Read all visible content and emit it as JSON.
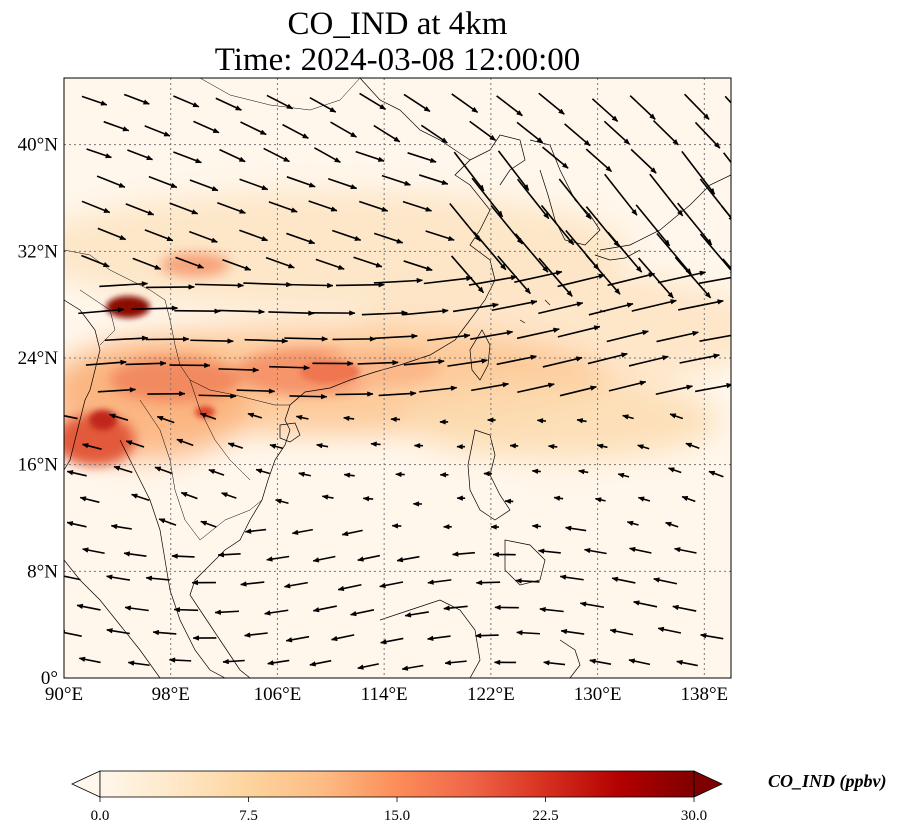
{
  "title": {
    "line1": "CO_IND at 4km",
    "line2": "Time: 2024-03-08 12:00:00"
  },
  "map": {
    "variable": "CO_IND",
    "level": "4km",
    "time": "2024-03-08 12:00:00",
    "extent": {
      "lon": [
        90,
        140
      ],
      "lat": [
        0,
        45
      ]
    },
    "gridlines": true,
    "lon_ticks": [
      {
        "value": 90,
        "label": "90°E"
      },
      {
        "value": 98,
        "label": "98°E"
      },
      {
        "value": 106,
        "label": "106°E"
      },
      {
        "value": 114,
        "label": "114°E"
      },
      {
        "value": 122,
        "label": "122°E"
      },
      {
        "value": 130,
        "label": "130°E"
      },
      {
        "value": 138,
        "label": "138°E"
      }
    ],
    "lat_ticks": [
      {
        "value": 0,
        "label": "0°"
      },
      {
        "value": 8,
        "label": "8°N"
      },
      {
        "value": 16,
        "label": "16°N"
      },
      {
        "value": 24,
        "label": "24°N"
      },
      {
        "value": 32,
        "label": "32°N"
      },
      {
        "value": 40,
        "label": "40°N"
      }
    ],
    "features": [
      "coastlines",
      "country-borders",
      "wind-vectors"
    ]
  },
  "colorbar": {
    "label": "CO_IND (ppbv)",
    "colormap": "OrRd",
    "min": 0.0,
    "max": 30.0,
    "extend": "both",
    "ticks": [
      "0.0",
      "7.5",
      "15.0",
      "22.5",
      "30.0"
    ],
    "colors": [
      "#fff7ec",
      "#fee8c8",
      "#fdd49e",
      "#fdbb84",
      "#fc8d59",
      "#ef6548",
      "#d7301f",
      "#b30000",
      "#7f0000"
    ]
  }
}
